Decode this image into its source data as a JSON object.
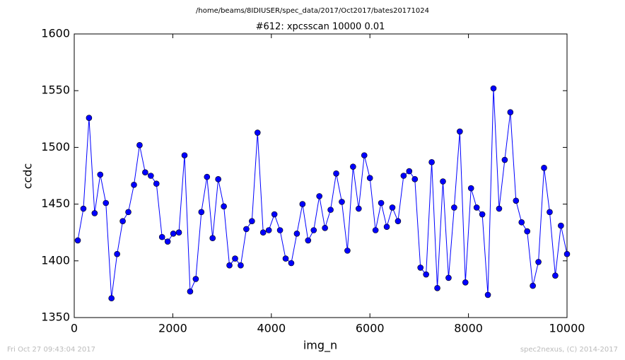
{
  "chart_data": {
    "type": "line",
    "title": "/home/beams/8IDIUSER/spec_data/2017/Oct2017/bates20171024",
    "subtitle": "#612: xpcsscan 10000 0.01",
    "x_label": "img_n",
    "y_label": "ccdc",
    "footer_left": "Fri Oct 27 09:43:04 2017",
    "footer_right": "spec2nexus, (C) 2014-2017",
    "grid": false,
    "xlim": [
      0,
      10000
    ],
    "xticks": [
      0,
      2000,
      4000,
      6000,
      8000,
      10000
    ],
    "ylim": [
      1350,
      1600
    ],
    "yticks": [
      1350,
      1400,
      1450,
      1500,
      1550,
      1600
    ],
    "x": [
      72,
      186,
      300,
      414,
      528,
      642,
      756,
      870,
      984,
      1098,
      1212,
      1326,
      1440,
      1554,
      1668,
      1782,
      1896,
      2010,
      2124,
      2238,
      2352,
      2466,
      2580,
      2694,
      2808,
      2922,
      3036,
      3150,
      3264,
      3378,
      3492,
      3606,
      3720,
      3834,
      3948,
      4062,
      4176,
      4290,
      4404,
      4518,
      4632,
      4746,
      4860,
      4974,
      5088,
      5202,
      5316,
      5430,
      5544,
      5658,
      5772,
      5886,
      6000,
      6114,
      6228,
      6342,
      6456,
      6570,
      6684,
      6798,
      6912,
      7026,
      7140,
      7254,
      7368,
      7482,
      7596,
      7710,
      7824,
      7938,
      8052,
      8166,
      8280,
      8394,
      8508,
      8622,
      8736,
      8850,
      8964,
      9078,
      9192,
      9306,
      9420,
      9534,
      9648,
      9762,
      9876,
      10000
    ],
    "series": [
      {
        "name": "ccdc",
        "color": "#0000ff",
        "values": [
          1418,
          1446,
          1526,
          1442,
          1476,
          1451,
          1367,
          1406,
          1435,
          1443,
          1467,
          1502,
          1478,
          1475,
          1468,
          1421,
          1417,
          1424,
          1425,
          1493,
          1373,
          1384,
          1443,
          1474,
          1420,
          1472,
          1448,
          1396,
          1402,
          1396,
          1428,
          1435,
          1513,
          1425,
          1427,
          1441,
          1427,
          1402,
          1398,
          1424,
          1450,
          1418,
          1427,
          1457,
          1429,
          1445,
          1477,
          1452,
          1409,
          1483,
          1446,
          1493,
          1473,
          1427,
          1451,
          1430,
          1447,
          1435,
          1475,
          1479,
          1472,
          1394,
          1388,
          1487,
          1376,
          1470,
          1385,
          1447,
          1514,
          1381,
          1464,
          1447,
          1441,
          1370,
          1552,
          1446,
          1489,
          1531,
          1453,
          1434,
          1426,
          1378,
          1399,
          1482,
          1443,
          1387,
          1431,
          1406
        ]
      }
    ]
  }
}
